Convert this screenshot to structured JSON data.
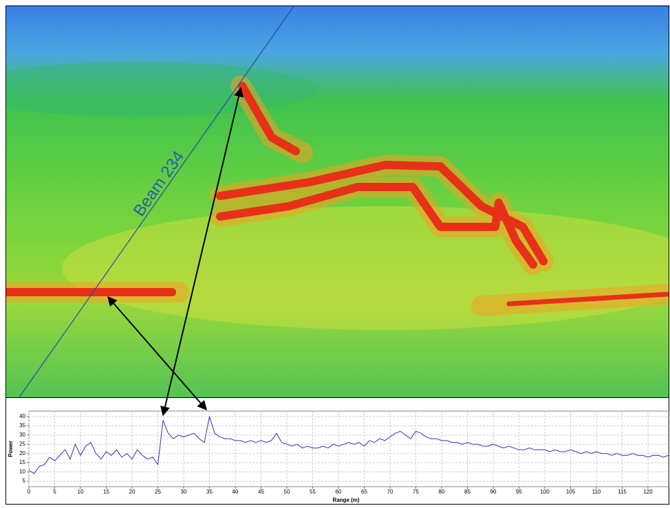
{
  "sonar_view": {
    "beam_label": "Beam 234"
  },
  "chart_data": {
    "type": "line",
    "x_label": "Range (m)",
    "y_label": "Power",
    "x": [
      0,
      1,
      2,
      3,
      4,
      5,
      6,
      7,
      8,
      9,
      10,
      11,
      12,
      13,
      14,
      15,
      16,
      17,
      18,
      19,
      20,
      21,
      22,
      23,
      24,
      25,
      26,
      27,
      28,
      29,
      30,
      31,
      32,
      33,
      34,
      35,
      36,
      37,
      38,
      39,
      40,
      41,
      42,
      43,
      44,
      45,
      46,
      47,
      48,
      49,
      50,
      51,
      52,
      53,
      54,
      55,
      56,
      57,
      58,
      59,
      60,
      61,
      62,
      63,
      64,
      65,
      66,
      67,
      68,
      69,
      70,
      71,
      72,
      73,
      74,
      75,
      76,
      77,
      78,
      79,
      80,
      81,
      82,
      83,
      84,
      85,
      86,
      87,
      88,
      89,
      90,
      91,
      92,
      93,
      94,
      95,
      96,
      97,
      98,
      99,
      100,
      101,
      102,
      103,
      104,
      105,
      106,
      107,
      108,
      109,
      110,
      111,
      112,
      113,
      114,
      115,
      116,
      117,
      118,
      119,
      120,
      121,
      122,
      123,
      124
    ],
    "values": [
      11,
      9,
      13,
      14,
      18,
      16,
      19,
      22,
      17,
      25,
      19,
      24,
      26,
      20,
      17,
      21,
      19,
      22,
      18,
      20,
      17,
      22,
      19,
      17,
      18,
      14,
      38,
      31,
      28,
      30,
      29,
      30,
      31,
      28,
      26,
      40,
      31,
      29,
      28,
      28,
      27,
      27,
      26,
      27,
      26,
      27,
      26,
      27,
      31,
      26,
      25,
      24,
      25,
      23,
      24,
      23,
      23,
      24,
      23,
      25,
      24,
      25,
      26,
      25,
      26,
      24,
      27,
      26,
      28,
      27,
      29,
      31,
      32,
      30,
      28,
      32,
      31,
      29,
      28,
      28,
      27,
      27,
      26,
      26,
      25,
      26,
      25,
      25,
      24,
      24,
      25,
      24,
      23,
      24,
      23,
      22,
      22,
      23,
      22,
      22,
      22,
      21,
      22,
      21,
      21,
      22,
      21,
      20,
      21,
      20,
      21,
      20,
      20,
      19,
      20,
      19,
      19,
      20,
      19,
      19,
      18,
      19,
      19,
      18,
      19
    ],
    "color": "#3030c8",
    "xlim": [
      0,
      124
    ],
    "xticks": [
      0,
      5,
      10,
      15,
      20,
      25,
      30,
      35,
      40,
      45,
      50,
      55,
      60,
      65,
      70,
      75,
      80,
      85,
      90,
      95,
      100,
      105,
      110,
      115,
      120
    ],
    "ylim": [
      2,
      43
    ],
    "yticks": [
      5,
      10,
      15,
      20,
      25,
      30,
      35,
      40
    ],
    "grid": true
  }
}
